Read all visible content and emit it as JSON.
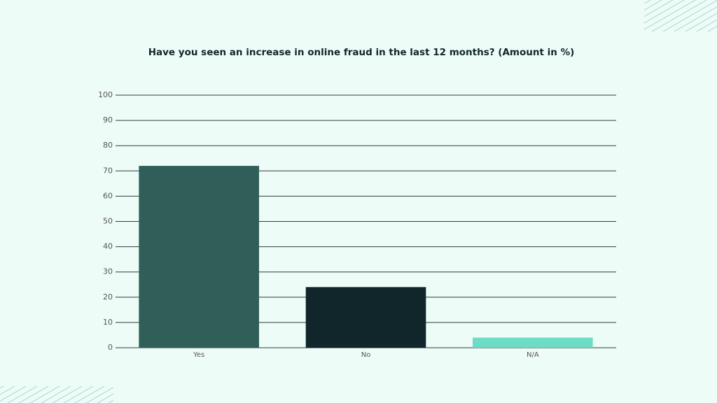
{
  "chart_data": {
    "type": "bar",
    "title": "Have you seen an increase in online fraud in the last 12 months? (Amount in %)",
    "categories": [
      "Yes",
      "No",
      "N/A"
    ],
    "values": [
      72,
      24,
      4
    ],
    "colors": [
      "#2f5f58",
      "#10262b",
      "#6ddcc4"
    ],
    "ylim": [
      0,
      100
    ],
    "yticks": [
      0,
      10,
      20,
      30,
      40,
      50,
      60,
      70,
      80,
      90,
      100
    ],
    "grid": true
  }
}
